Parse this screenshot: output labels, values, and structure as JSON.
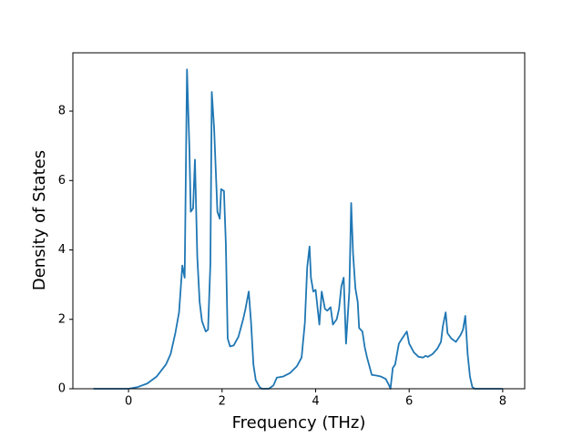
{
  "chart_data": {
    "type": "line",
    "xlabel": "Frequency (THz)",
    "ylabel": "Density of States",
    "color": "#1f77b4",
    "x": [
      -0.75,
      0,
      0.2,
      0.4,
      0.6,
      0.8,
      0.9,
      1.0,
      1.08,
      1.15,
      1.2,
      1.25,
      1.3,
      1.33,
      1.38,
      1.42,
      1.47,
      1.52,
      1.57,
      1.65,
      1.7,
      1.75,
      1.78,
      1.83,
      1.9,
      1.95,
      1.98,
      2.04,
      2.08,
      2.12,
      2.17,
      2.25,
      2.35,
      2.45,
      2.5,
      2.57,
      2.62,
      2.67,
      2.72,
      2.8,
      2.85,
      3.0,
      3.1,
      3.17,
      3.3,
      3.45,
      3.6,
      3.7,
      3.77,
      3.82,
      3.87,
      3.9,
      3.95,
      4.0,
      4.08,
      4.13,
      4.2,
      4.25,
      4.32,
      4.37,
      4.45,
      4.5,
      4.55,
      4.6,
      4.65,
      4.72,
      4.76,
      4.8,
      4.85,
      4.9,
      4.93,
      5.0,
      5.05,
      5.1,
      5.2,
      5.3,
      5.4,
      5.5,
      5.57,
      5.6,
      5.65,
      5.7,
      5.78,
      5.85,
      5.9,
      5.95,
      6.0,
      6.1,
      6.2,
      6.3,
      6.35,
      6.4,
      6.5,
      6.6,
      6.68,
      6.72,
      6.78,
      6.82,
      6.9,
      7.0,
      7.1,
      7.15,
      7.2,
      7.25,
      7.3,
      7.35,
      7.4,
      8.0
    ],
    "values": [
      0,
      0,
      0.05,
      0.15,
      0.35,
      0.7,
      1.0,
      1.6,
      2.2,
      3.55,
      3.2,
      9.2,
      7.0,
      5.1,
      5.2,
      6.6,
      3.8,
      2.5,
      1.95,
      1.65,
      1.7,
      3.6,
      8.55,
      7.5,
      5.1,
      4.9,
      5.75,
      5.7,
      4.2,
      1.45,
      1.22,
      1.25,
      1.5,
      2.0,
      2.3,
      2.8,
      1.9,
      0.7,
      0.25,
      0.05,
      0,
      0,
      0.1,
      0.32,
      0.35,
      0.45,
      0.65,
      0.9,
      1.9,
      3.5,
      4.1,
      3.2,
      2.8,
      2.85,
      1.85,
      2.8,
      2.3,
      2.25,
      2.35,
      1.85,
      2.0,
      2.3,
      2.95,
      3.2,
      1.3,
      2.8,
      5.35,
      3.9,
      2.9,
      2.5,
      1.75,
      1.65,
      1.2,
      0.9,
      0.4,
      0.38,
      0.35,
      0.28,
      0.1,
      0,
      0.6,
      0.7,
      1.3,
      1.45,
      1.55,
      1.65,
      1.3,
      1.05,
      0.92,
      0.9,
      0.95,
      0.92,
      1.0,
      1.15,
      1.35,
      1.8,
      2.2,
      1.6,
      1.45,
      1.35,
      1.55,
      1.7,
      2.1,
      1.0,
      0.35,
      0.05,
      0,
      0
    ],
    "xlim": [
      -1.19,
      8.47
    ],
    "ylim": [
      0,
      9.68
    ],
    "xticks": [
      0,
      2,
      4,
      6,
      8
    ],
    "yticks": [
      0,
      2,
      4,
      6,
      8
    ]
  }
}
